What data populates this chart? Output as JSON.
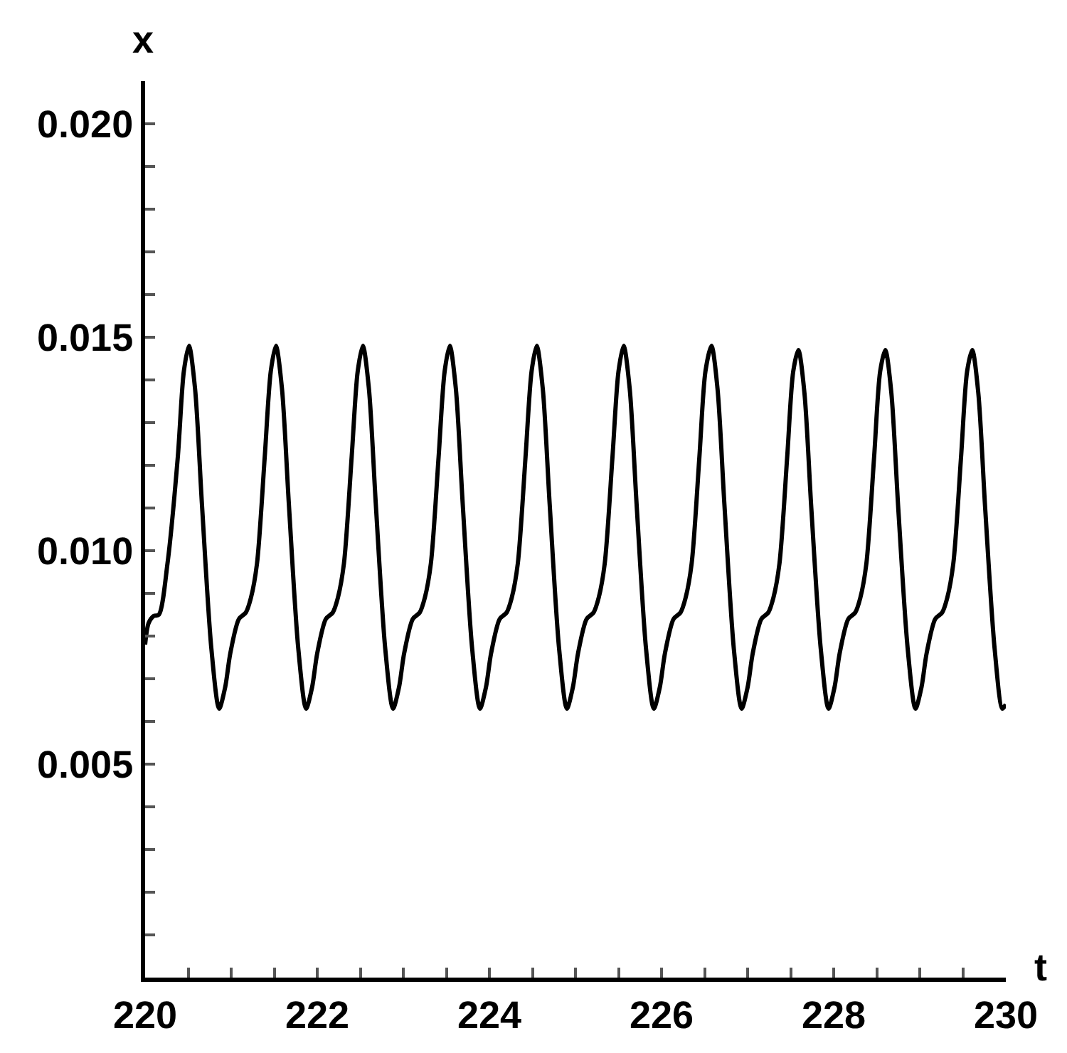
{
  "chart_data": {
    "type": "line",
    "xlabel": "t",
    "ylabel": "x",
    "color": "#000000",
    "line_style": "solid",
    "marker": "none",
    "legend": false,
    "xlim": [
      220,
      230
    ],
    "ylim": [
      0,
      0.021
    ],
    "xticks": [
      220,
      {
        "value": 220.5,
        "label": null
      },
      {
        "value": 221,
        "label": null
      },
      {
        "value": 221.5,
        "label": null
      },
      222,
      {
        "value": 222.5,
        "label": null
      },
      {
        "value": 223,
        "label": null
      },
      {
        "value": 223.5,
        "label": null
      },
      224,
      {
        "value": 224.5,
        "label": null
      },
      {
        "value": 225,
        "label": null
      },
      {
        "value": 225.5,
        "label": null
      },
      226,
      {
        "value": 226.5,
        "label": null
      },
      {
        "value": 227,
        "label": null
      },
      {
        "value": 227.5,
        "label": null
      },
      228,
      {
        "value": 228.5,
        "label": null
      },
      {
        "value": 229,
        "label": null
      },
      {
        "value": 229.5,
        "label": null
      },
      230
    ],
    "yticks": [
      {
        "value": 0.001,
        "label": null
      },
      {
        "value": 0.002,
        "label": null
      },
      {
        "value": 0.003,
        "label": null
      },
      {
        "value": 0.004,
        "label": null
      },
      0.005,
      {
        "value": 0.006,
        "label": null
      },
      {
        "value": 0.007,
        "label": null
      },
      {
        "value": 0.008,
        "label": null
      },
      {
        "value": 0.009,
        "label": null
      },
      {
        "value": 0.01,
        "label": "0.010"
      },
      {
        "value": 0.011,
        "label": null
      },
      {
        "value": 0.012,
        "label": null
      },
      {
        "value": 0.013,
        "label": null
      },
      {
        "value": 0.014,
        "label": null
      },
      0.015,
      {
        "value": 0.016,
        "label": null
      },
      {
        "value": 0.017,
        "label": null
      },
      {
        "value": 0.018,
        "label": null
      },
      {
        "value": 0.019,
        "label": null
      },
      {
        "value": 0.02,
        "label": "0.020"
      }
    ],
    "x": [
      220.0,
      220.04,
      220.1,
      220.16,
      220.26,
      220.38,
      220.45,
      220.51,
      220.58,
      220.66,
      220.77,
      220.86,
      220.93,
      220.99,
      221.09,
      221.17,
      221.23,
      221.3,
      221.39,
      221.46,
      221.52,
      221.59,
      221.67,
      221.78,
      221.87,
      221.94,
      222.0,
      222.1,
      222.18,
      222.24,
      222.31,
      222.4,
      222.47,
      222.53,
      222.6,
      222.68,
      222.79,
      222.88,
      222.95,
      223.01,
      223.11,
      223.19,
      223.25,
      223.32,
      223.41,
      223.48,
      223.54,
      223.61,
      223.69,
      223.8,
      223.89,
      223.96,
      224.02,
      224.12,
      224.2,
      224.26,
      224.33,
      224.42,
      224.49,
      224.55,
      224.62,
      224.7,
      224.81,
      224.9,
      224.97,
      225.03,
      225.13,
      225.21,
      225.27,
      225.34,
      225.43,
      225.5,
      225.56,
      225.63,
      225.71,
      225.82,
      225.91,
      225.98,
      226.04,
      226.14,
      226.22,
      226.28,
      226.35,
      226.44,
      226.51,
      226.58,
      226.65,
      226.73,
      226.84,
      226.93,
      227.0,
      227.06,
      227.16,
      227.24,
      227.3,
      227.37,
      227.46,
      227.53,
      227.59,
      227.66,
      227.74,
      227.85,
      227.94,
      228.01,
      228.07,
      228.17,
      228.25,
      228.31,
      228.38,
      228.47,
      228.54,
      228.6,
      228.67,
      228.75,
      228.86,
      228.95,
      229.02,
      229.08,
      229.18,
      229.26,
      229.32,
      229.39,
      229.48,
      229.55,
      229.61,
      229.68,
      229.76,
      229.87,
      229.96,
      230.0
    ],
    "values": [
      0.0078,
      0.0083,
      0.00847,
      0.0085,
      0.0097,
      0.0122,
      0.0142,
      0.0148,
      0.0138,
      0.0111,
      0.0077,
      0.0063,
      0.0068,
      0.0076,
      0.0084,
      0.00855,
      0.0089,
      0.0097,
      0.0122,
      0.0142,
      0.0148,
      0.0138,
      0.0111,
      0.0077,
      0.0063,
      0.0068,
      0.0076,
      0.0084,
      0.00855,
      0.0089,
      0.0097,
      0.0122,
      0.0142,
      0.0148,
      0.0138,
      0.0111,
      0.0077,
      0.0063,
      0.0068,
      0.0076,
      0.0084,
      0.00855,
      0.0089,
      0.0097,
      0.0122,
      0.0142,
      0.0148,
      0.0138,
      0.0111,
      0.0077,
      0.0063,
      0.0068,
      0.0076,
      0.0084,
      0.00855,
      0.0089,
      0.0097,
      0.0122,
      0.0142,
      0.0148,
      0.0138,
      0.0111,
      0.0077,
      0.0063,
      0.0068,
      0.0076,
      0.0084,
      0.00855,
      0.0089,
      0.0097,
      0.0122,
      0.0142,
      0.0148,
      0.0138,
      0.0111,
      0.0077,
      0.0063,
      0.0068,
      0.0076,
      0.0084,
      0.00855,
      0.0089,
      0.0097,
      0.0122,
      0.0142,
      0.0148,
      0.0138,
      0.0111,
      0.0077,
      0.0063,
      0.0068,
      0.0076,
      0.0084,
      0.00855,
      0.0089,
      0.0097,
      0.0122,
      0.0142,
      0.0147,
      0.0137,
      0.011,
      0.0077,
      0.0063,
      0.0068,
      0.0076,
      0.0084,
      0.00855,
      0.0089,
      0.0097,
      0.0122,
      0.0142,
      0.0147,
      0.0137,
      0.011,
      0.0077,
      0.0063,
      0.0068,
      0.0076,
      0.0084,
      0.00855,
      0.0089,
      0.0097,
      0.0122,
      0.0142,
      0.0147,
      0.0137,
      0.011,
      0.0077,
      0.0063,
      0.0064
    ]
  }
}
